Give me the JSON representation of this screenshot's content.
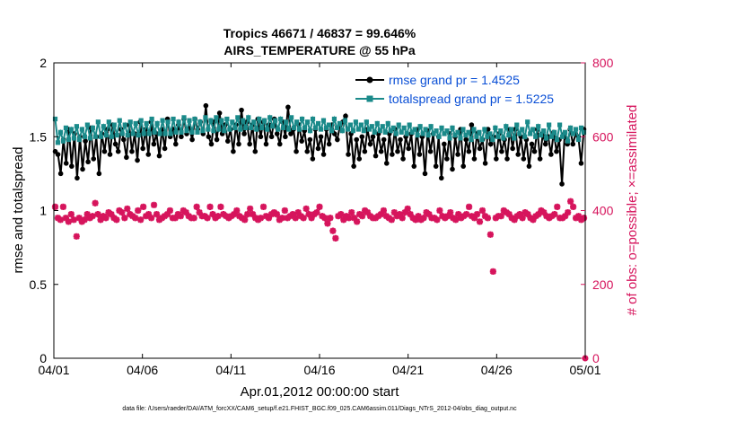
{
  "chart_data": {
    "type": "line",
    "title": "Tropics 46671 / 46837 = 99.646%",
    "subtitle": "AIRS_TEMPERATURE @ 55 hPa",
    "xlabel": "Apr.01,2012 00:00:00 start",
    "ylabel": "rmse and totalspread",
    "ylabel_right": "# of obs: o=possible; ×=assimilated",
    "footer": "data file: /Users/raeder/DAI/ATM_forcXX/CAM6_setup/f.e21.FHIST_BGC.f09_025.CAM6assim.011/Diags_NTrS_2012-04/obs_diag_output.nc",
    "ylim": [
      0,
      2
    ],
    "ylim_right": [
      0,
      800
    ],
    "xlim": [
      0,
      30
    ],
    "x_ticks": [
      0,
      5,
      10,
      15,
      20,
      25,
      30
    ],
    "x_tick_labels": [
      "04/01",
      "04/06",
      "04/11",
      "04/16",
      "04/21",
      "04/26",
      "05/01"
    ],
    "y_ticks": [
      0,
      0.5,
      1,
      1.5,
      2
    ],
    "y_tick_labels": [
      "0",
      "0.5",
      "1",
      "1.5",
      "2"
    ],
    "y_ticks_right": [
      0,
      200,
      400,
      600,
      800
    ],
    "y_tick_labels_right": [
      "0",
      "200",
      "400",
      "600",
      "800"
    ],
    "legend_position": "top-right",
    "grid": false,
    "colors": {
      "rmse": "#000000",
      "totalspread": "#1a8a8a",
      "obs": "#d6145c",
      "legend_text": "#0a4fd6"
    },
    "series": [
      {
        "name": "rmse grand pr = 1.4525",
        "axis": "left",
        "color": "#000000",
        "marker": "circle",
        "values": [
          1.4,
          1.38,
          1.25,
          1.48,
          1.32,
          1.55,
          1.3,
          1.52,
          1.22,
          1.5,
          1.28,
          1.47,
          1.33,
          1.56,
          1.35,
          1.5,
          1.25,
          1.52,
          1.4,
          1.55,
          1.38,
          1.58,
          1.45,
          1.4,
          1.55,
          1.48,
          1.36,
          1.58,
          1.4,
          1.52,
          1.34,
          1.6,
          1.42,
          1.55,
          1.38,
          1.6,
          1.45,
          1.52,
          1.37,
          1.55,
          1.42,
          1.62,
          1.5,
          1.55,
          1.45,
          1.58,
          1.5,
          1.62,
          1.52,
          1.56,
          1.48,
          1.62,
          1.55,
          1.6,
          1.52,
          1.71,
          1.5,
          1.45,
          1.6,
          1.48,
          1.66,
          1.52,
          1.58,
          1.47,
          1.55,
          1.4,
          1.58,
          1.45,
          1.68,
          1.52,
          1.6,
          1.45,
          1.58,
          1.4,
          1.62,
          1.5,
          1.6,
          1.45,
          1.58,
          1.5,
          1.62,
          1.52,
          1.45,
          1.6,
          1.5,
          1.7,
          1.52,
          1.55,
          1.4,
          1.58,
          1.47,
          1.54,
          1.4,
          1.48,
          1.35,
          1.55,
          1.42,
          1.5,
          1.38,
          1.55,
          1.45,
          1.58,
          1.52,
          1.48,
          1.58,
          1.6,
          1.64,
          1.38,
          1.52,
          1.3,
          1.48,
          1.35,
          1.5,
          1.4,
          1.55,
          1.45,
          1.5,
          1.37,
          1.52,
          1.4,
          1.48,
          1.32,
          1.52,
          1.38,
          1.55,
          1.4,
          1.48,
          1.35,
          1.5,
          1.42,
          1.52,
          1.3,
          1.55,
          1.38,
          1.5,
          1.25,
          1.54,
          1.4,
          1.52,
          1.3,
          1.5,
          1.22,
          1.45,
          1.35,
          1.52,
          1.28,
          1.5,
          1.38,
          1.55,
          1.3,
          1.48,
          1.4,
          1.58,
          1.35,
          1.52,
          1.42,
          1.48,
          1.32,
          1.55,
          1.45,
          1.5,
          1.35,
          1.52,
          1.4,
          1.48,
          1.35,
          1.55,
          1.42,
          1.55,
          1.38,
          1.5,
          1.35,
          1.48,
          1.3,
          1.45,
          1.4,
          1.55,
          1.35,
          1.52,
          1.45,
          1.5,
          1.38,
          1.53,
          1.4,
          1.48,
          1.18,
          1.52,
          1.45,
          1.55,
          1.45,
          1.52,
          1.5,
          1.32,
          1.55
        ]
      },
      {
        "name": "totalspread grand pr = 1.5225",
        "axis": "left",
        "color": "#1a8a8a",
        "marker": "square",
        "values": [
          1.62,
          1.46,
          1.53,
          1.47,
          1.56,
          1.48,
          1.55,
          1.49,
          1.57,
          1.48,
          1.55,
          1.5,
          1.58,
          1.49,
          1.56,
          1.5,
          1.6,
          1.5,
          1.57,
          1.51,
          1.6,
          1.5,
          1.58,
          1.51,
          1.61,
          1.52,
          1.58,
          1.51,
          1.6,
          1.52,
          1.59,
          1.51,
          1.61,
          1.52,
          1.59,
          1.52,
          1.62,
          1.53,
          1.59,
          1.52,
          1.61,
          1.52,
          1.6,
          1.52,
          1.62,
          1.53,
          1.6,
          1.53,
          1.63,
          1.54,
          1.61,
          1.53,
          1.62,
          1.53,
          1.6,
          1.54,
          1.63,
          1.55,
          1.61,
          1.54,
          1.63,
          1.55,
          1.61,
          1.54,
          1.62,
          1.55,
          1.6,
          1.56,
          1.63,
          1.55,
          1.61,
          1.56,
          1.63,
          1.56,
          1.6,
          1.55,
          1.62,
          1.56,
          1.61,
          1.55,
          1.63,
          1.57,
          1.61,
          1.55,
          1.62,
          1.56,
          1.6,
          1.55,
          1.63,
          1.56,
          1.6,
          1.55,
          1.62,
          1.56,
          1.6,
          1.54,
          1.62,
          1.56,
          1.59,
          1.55,
          1.61,
          1.56,
          1.58,
          1.54,
          1.62,
          1.56,
          1.59,
          1.54,
          1.61,
          1.55,
          1.58,
          1.54,
          1.6,
          1.55,
          1.58,
          1.54,
          1.6,
          1.55,
          1.57,
          1.53,
          1.59,
          1.54,
          1.57,
          1.53,
          1.59,
          1.54,
          1.56,
          1.52,
          1.58,
          1.53,
          1.56,
          1.52,
          1.58,
          1.53,
          1.55,
          1.51,
          1.57,
          1.52,
          1.55,
          1.51,
          1.57,
          1.52,
          1.54,
          1.5,
          1.56,
          1.52,
          1.54,
          1.49,
          1.56,
          1.51,
          1.53,
          1.49,
          1.55,
          1.51,
          1.53,
          1.48,
          1.55,
          1.5,
          1.53,
          1.48,
          1.55,
          1.5,
          1.52,
          1.48,
          1.56,
          1.5,
          1.54,
          1.49,
          1.57,
          1.51,
          1.55,
          1.49,
          1.58,
          1.52,
          1.55,
          1.5,
          1.6,
          1.52,
          1.55,
          1.5,
          1.57,
          1.51,
          1.54,
          1.49,
          1.58,
          1.5,
          1.53,
          1.48,
          1.58,
          1.5,
          1.53,
          1.47,
          1.56,
          1.52,
          1.55,
          1.48,
          1.56,
          1.53
        ]
      },
      {
        "name": "# of obs assimilated",
        "axis": "right",
        "color": "#d6145c",
        "marker": "x-star",
        "values": [
          410,
          380,
          375,
          410,
          380,
          370,
          390,
          375,
          330,
          380,
          370,
          375,
          390,
          380,
          385,
          420,
          390,
          375,
          385,
          380,
          395,
          390,
          380,
          375,
          400,
          395,
          380,
          405,
          390,
          385,
          380,
          400,
          375,
          410,
          385,
          390,
          380,
          415,
          390,
          375,
          380,
          385,
          390,
          400,
          380,
          380,
          390,
          385,
          400,
          395,
          385,
          380,
          380,
          410,
          395,
          385,
          385,
          380,
          410,
          390,
          380,
          385,
          410,
          390,
          385,
          380,
          385,
          390,
          400,
          385,
          380,
          375,
          390,
          405,
          390,
          380,
          375,
          380,
          410,
          385,
          380,
          390,
          395,
          390,
          375,
          380,
          400,
          380,
          385,
          390,
          380,
          395,
          385,
          380,
          405,
          390,
          380,
          390,
          395,
          410,
          385,
          380,
          365,
          380,
          345,
          325,
          385,
          390,
          375,
          385,
          380,
          395,
          380,
          370,
          390,
          385,
          400,
          395,
          385,
          380,
          380,
          385,
          390,
          400,
          385,
          380,
          375,
          395,
          385,
          390,
          380,
          395,
          405,
          390,
          380,
          375,
          385,
          375,
          380,
          395,
          390,
          380,
          380,
          375,
          400,
          385,
          380,
          385,
          395,
          380,
          375,
          390,
          380,
          385,
          390,
          410,
          385,
          380,
          390,
          370,
          400,
          385,
          380,
          335,
          235,
          380,
          385,
          385,
          400,
          395,
          390,
          380,
          375,
          385,
          390,
          380,
          395,
          390,
          380,
          375,
          385,
          390,
          400,
          395,
          385,
          380,
          385,
          390,
          410,
          380,
          380,
          385,
          395,
          425,
          410,
          380,
          385,
          375,
          380
        ]
      }
    ],
    "legend": [
      "rmse grand pr = 1.4525",
      "totalspread grand pr = 1.5225"
    ]
  }
}
